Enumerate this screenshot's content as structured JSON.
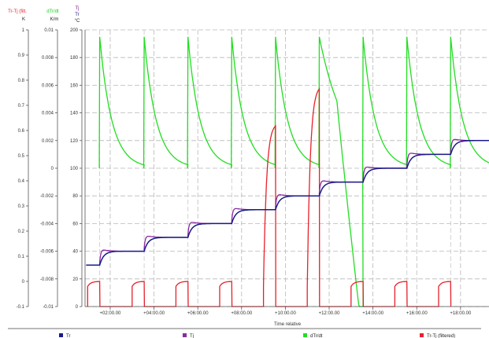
{
  "chart_data": {
    "type": "line",
    "xlabel": "Time relative",
    "x_tick_labels": [
      "+02:00.00",
      "+04:00.00",
      "+06:00.00",
      "+08:00.00",
      "+10:00.00",
      "+12:00.00",
      "+14:00.00",
      "+16:00.00",
      "+18:00.00"
    ],
    "x_ticks": [
      2,
      4,
      6,
      8,
      10,
      12,
      14,
      16,
      18
    ],
    "xlim": [
      0.85,
      19.3
    ],
    "axes": {
      "trtj": {
        "header": [
          "Tr-Tj (filt.",
          "K"
        ],
        "color": "#e8202a",
        "ylim": [
          -0.1,
          1.0
        ],
        "ticks": [
          -0.1,
          0,
          0.1,
          0.2,
          0.3,
          0.4,
          0.5,
          0.6,
          0.7,
          0.8,
          0.9,
          1
        ],
        "tick_labels": [
          "-0.1",
          "0",
          "0.1",
          "0.2",
          "0.3",
          "0.4",
          "0.5",
          "0.6",
          "0.7",
          "0.8",
          "0.9",
          "1"
        ]
      },
      "dtr": {
        "header": [
          "dTr/dt",
          "K/m"
        ],
        "color": "#22cc22",
        "ylim": [
          -0.01,
          0.01
        ],
        "ticks": [
          -0.01,
          -0.008,
          -0.006,
          -0.004,
          -0.002,
          0,
          0.002,
          0.004,
          0.006,
          0.008,
          0.01
        ],
        "tick_labels": [
          "-0.01",
          "-0.008",
          "-0.006",
          "-0.004",
          "-0.002",
          "0",
          "0.002",
          "0.004",
          "0.006",
          "0.008",
          "0.01"
        ]
      },
      "temp": {
        "header": [
          "Tj",
          "Tr",
          "°C"
        ],
        "header_colors": [
          "#7a1a8a",
          "#1a1a7a",
          "#222222"
        ],
        "ylim": [
          0,
          200
        ],
        "ticks": [
          0,
          20,
          40,
          60,
          80,
          100,
          120,
          140,
          160,
          180,
          200
        ],
        "tick_labels": [
          "0",
          "20",
          "40",
          "60",
          "80",
          "100",
          "120",
          "140",
          "160",
          "180",
          "200"
        ]
      }
    },
    "steps": {
      "times": [
        0.9,
        1.52,
        3.55,
        5.55,
        7.55,
        9.55,
        11.55,
        13.55,
        15.55,
        17.55
      ],
      "levels": [
        30,
        40,
        50,
        60,
        70,
        80,
        90,
        100,
        110,
        120
      ]
    },
    "cycle_starts": [
      1.52,
      3.55,
      5.55,
      7.55,
      9.55,
      11.55,
      13.55,
      15.55,
      17.55
    ],
    "series": [
      {
        "name": "Tr",
        "color": "#1a1a8a"
      },
      {
        "name": "Tj",
        "color": "#8a2aa0"
      },
      {
        "name": "dTr/dt",
        "color": "#22dd22"
      },
      {
        "name": "Tr-Tj (filtered)",
        "color": "#e8202a"
      }
    ],
    "legend_position": "bottom"
  }
}
